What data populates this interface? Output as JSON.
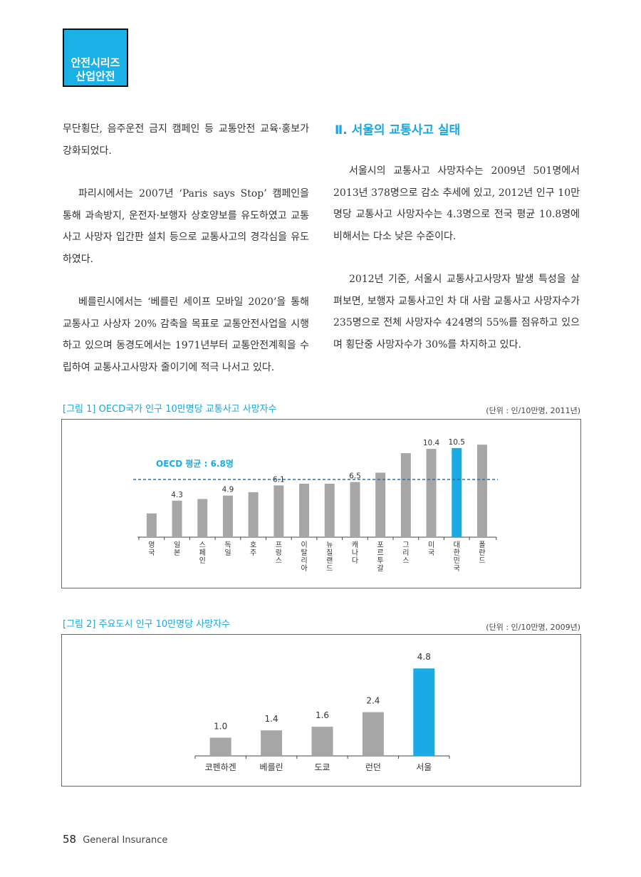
{
  "series_badge": {
    "line1": "안전시리즈",
    "line2": "산업안전"
  },
  "left_column": {
    "para1": "무단횡단, 음주운전 금지 캠페인 등 교통안전 교육·홍보가 강화되었다.",
    "para2": "파리시에서는 2007년 ‘Paris says Stop’ 캠페인을 통해 과속방지, 운전자·보행자 상호양보를 유도하였고 교통사고 사망자 입간판 설치 등으로 교통사고의 경각심을 유도하였다.",
    "para3": "베를린시에서는 ‘베를린 세이프 모바일 2020’을 통해 교통사고 사상자 20% 감축을 목표로 교통안전사업을 시행하고 있으며 동경도에서는 1971년부터 교통안전계획을 수립하여 교통사고사망자 줄이기에 적극 나서고 있다."
  },
  "right_column": {
    "section_title": "Ⅱ. 서울의 교통사고 실태",
    "para1": "서울시의 교통사고 사망자수는 2009년 501명에서 2013년 378명으로 감소 추세에 있고, 2012년 인구 10만명당 교통사고 사망자수는 4.3명으로 전국 평균 10.8명에 비해서는 다소 낮은 수준이다.",
    "para2": "2012년 기준, 서울시 교통사고사망자 발생 특성을 살펴보면, 보행자 교통사고인 차 대 사람 교통사고 사망자수가 235명으로 전체 사망자수 424명의 55%를 점유하고 있으며 횡단중 사망자수가 30%를 차지하고 있다."
  },
  "figure1": {
    "caption": "[그림 1] OECD국가 인구 10만명당 교통사고 사망자수",
    "unit": "(단위 : 인/10만명, 2011년)",
    "avg_label": "OECD 평균 : 6.8명",
    "color_default": "#a6a6a6",
    "color_highlight": "#1aabe6",
    "color_avg": "#2b6fa8"
  },
  "figure2": {
    "caption": "[그림 2] 주요도시 인구 10만명당 사망자수",
    "unit": "(단위 : 인/10만명, 2009년)",
    "color_default": "#a6a6a6",
    "color_highlight": "#1aabe6"
  },
  "chart_data": [
    {
      "type": "bar",
      "title": "[그림 1] OECD국가 인구 10만명당 교통사고 사망자수",
      "categories": [
        "영국",
        "일본",
        "스페인",
        "독일",
        "호주",
        "프랑스",
        "이탈리아",
        "뉴질랜드",
        "캐나다",
        "포르투갈",
        "그리스",
        "미국",
        "대한민국",
        "폴란드"
      ],
      "values": [
        2.8,
        4.3,
        4.5,
        4.9,
        5.3,
        6.1,
        6.3,
        6.3,
        6.5,
        7.6,
        9.9,
        10.4,
        10.5,
        10.9
      ],
      "value_labels": [
        "",
        "4.3",
        "",
        "4.9",
        "",
        "6.1",
        "",
        "",
        "6.5",
        "",
        "",
        "10.4",
        "10.5",
        ""
      ],
      "highlight": "대한민국",
      "reference_line": {
        "label": "OECD 평균 : 6.8명",
        "value": 6.8
      },
      "ylim": [
        0,
        11.5
      ],
      "grid": false,
      "xlabel": "",
      "ylabel": ""
    },
    {
      "type": "bar",
      "title": "[그림 2] 주요도시 인구 10만명당 사망자수",
      "categories": [
        "코펜하겐",
        "베를린",
        "도쿄",
        "런던",
        "서울"
      ],
      "values": [
        1.0,
        1.4,
        1.6,
        2.4,
        4.8
      ],
      "value_labels": [
        "1.0",
        "1.4",
        "1.6",
        "2.4",
        "4.8"
      ],
      "highlight": "서울",
      "ylim": [
        0,
        5.2
      ],
      "grid": false,
      "xlabel": "",
      "ylabel": ""
    }
  ],
  "footer": {
    "page_number": "58",
    "magazine": "General Insurance"
  }
}
